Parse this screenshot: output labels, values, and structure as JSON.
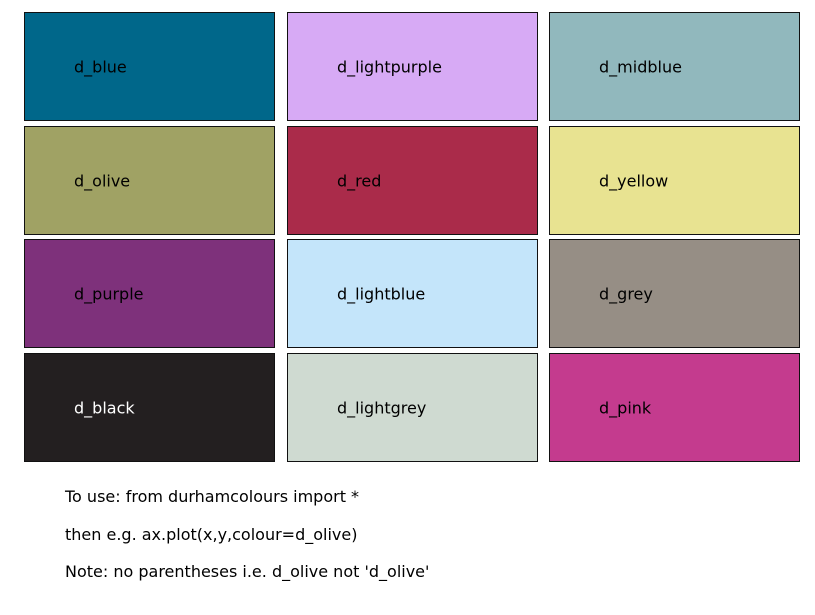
{
  "swatches": [
    {
      "label": "d_blue",
      "color": "#00678a",
      "text_color": "#000000"
    },
    {
      "label": "d_lightpurple",
      "color": "#d7aaf5",
      "text_color": "#000000"
    },
    {
      "label": "d_midblue",
      "color": "#91b8bd",
      "text_color": "#000000"
    },
    {
      "label": "d_olive",
      "color": "#a0a264",
      "text_color": "#000000"
    },
    {
      "label": "d_red",
      "color": "#aa2b4a",
      "text_color": "#000000"
    },
    {
      "label": "d_yellow",
      "color": "#e8e391",
      "text_color": "#000000"
    },
    {
      "label": "d_purple",
      "color": "#7e317b",
      "text_color": "#000000"
    },
    {
      "label": "d_lightblue",
      "color": "#c4e5fa",
      "text_color": "#000000"
    },
    {
      "label": "d_grey",
      "color": "#968e85",
      "text_color": "#000000"
    },
    {
      "label": "d_black",
      "color": "#231f20",
      "text_color": "#ffffff"
    },
    {
      "label": "d_lightgrey",
      "color": "#cfdad1",
      "text_color": "#000000"
    },
    {
      "label": "d_pink",
      "color": "#c43b8e",
      "text_color": "#000000"
    }
  ],
  "notes": [
    "To use: from durhamcolours import *",
    "then e.g. ax.plot(x,y,colour=d_olive)",
    "Note: no parentheses i.e. d_olive not 'd_olive'"
  ]
}
